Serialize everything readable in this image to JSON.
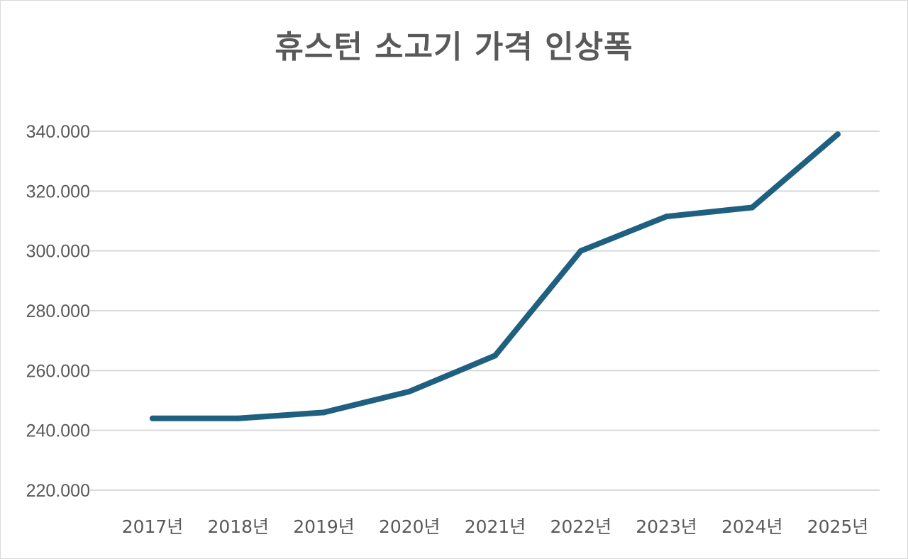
{
  "chart_data": {
    "type": "line",
    "title": "휴스턴 소고기 가격 인상폭",
    "categories": [
      "2017년",
      "2018년",
      "2019년",
      "2020년",
      "2021년",
      "2022년",
      "2023년",
      "2024년",
      "2025년"
    ],
    "series": [
      {
        "values": [
          244000,
          244000,
          246000,
          253000,
          265000,
          300000,
          311500,
          314500,
          339000
        ]
      }
    ],
    "ylim": [
      220000,
      340000
    ],
    "yticks": [
      340000,
      320000,
      300000,
      280000,
      260000,
      240000,
      220000
    ],
    "ytick_labels": [
      "340.000",
      "320.000",
      "300.000",
      "280.000",
      "260.000",
      "240.000",
      "220.000"
    ],
    "xlabel": "",
    "ylabel": "",
    "grid": true,
    "legend": "none",
    "line_color": "#1f6080"
  }
}
